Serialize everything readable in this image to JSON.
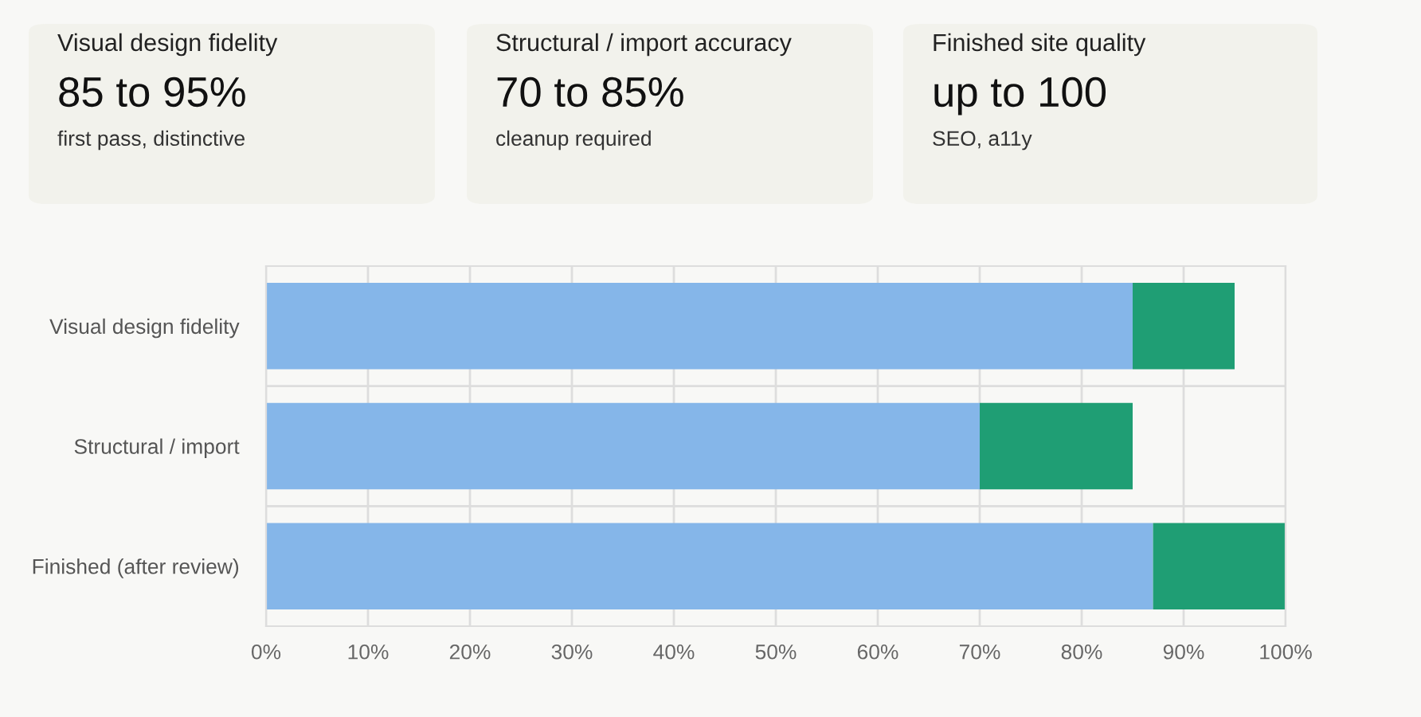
{
  "chart_data": [
    {
      "type": "other",
      "annotations": [
        "Visual design fidelity",
        "85 to 95%",
        "first pass, distinctive",
        "Structural / import accuracy",
        "70 to 85%",
        "cleanup required",
        "Finished site quality",
        "up to 100",
        "SEO, a11y"
      ]
    },
    {
      "type": "bar",
      "orientation": "horizontal",
      "stacked": true,
      "categories": [
        "Visual design fidelity",
        "Structural / import",
        "Finished (after review)"
      ],
      "series": [
        {
          "color": "#85b6e9",
          "values": [
            85,
            70,
            87
          ]
        },
        {
          "color": "#1f9e74",
          "values": [
            10,
            15,
            13
          ]
        }
      ],
      "xlim": [
        0,
        100
      ],
      "xticks": [
        {
          "value": 0,
          "label": "0%"
        },
        {
          "value": 10,
          "label": "10%"
        },
        {
          "value": 20,
          "label": "20%"
        },
        {
          "value": 30,
          "label": "30%"
        },
        {
          "value": 40,
          "label": "40%"
        },
        {
          "value": 50,
          "label": "50%"
        },
        {
          "value": 60,
          "label": "60%"
        },
        {
          "value": 70,
          "label": "70%"
        },
        {
          "value": 80,
          "label": "80%"
        },
        {
          "value": 90,
          "label": "90%"
        },
        {
          "value": 100,
          "label": "100%"
        }
      ],
      "grid": true,
      "legend": false
    }
  ]
}
